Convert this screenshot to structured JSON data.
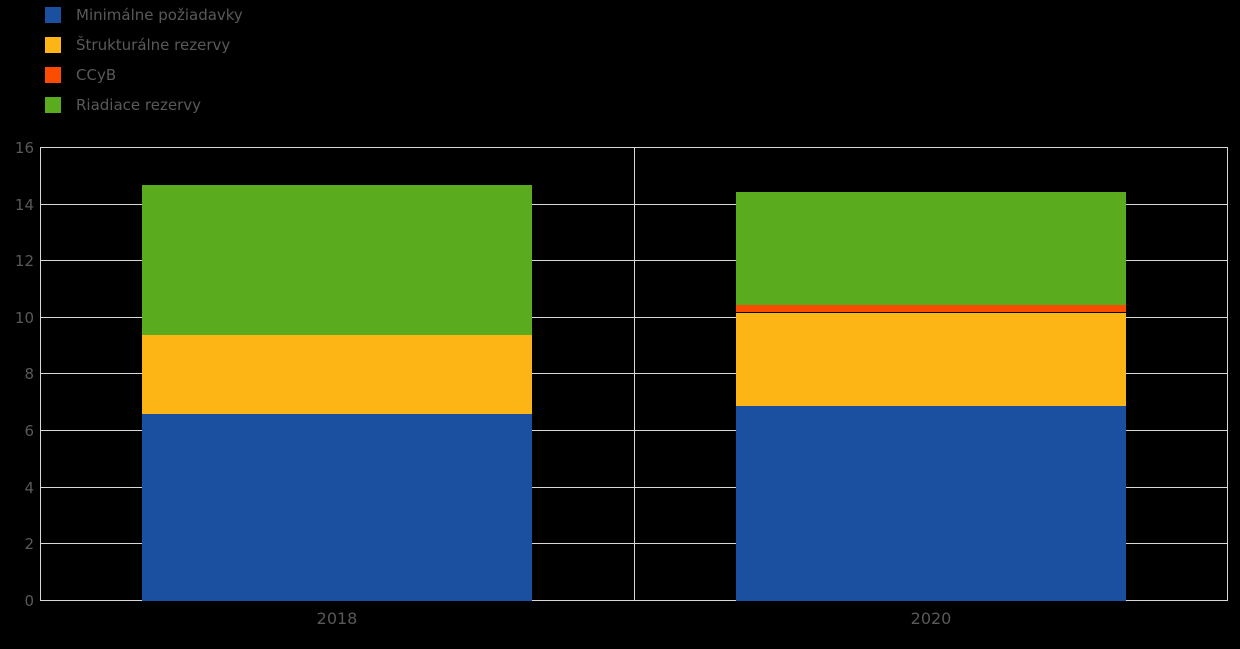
{
  "legend": {
    "items": [
      {
        "label": "Minimálne požiadavky",
        "color": "#1b4fa0"
      },
      {
        "label": "Štrukturálne rezervy",
        "color": "#fdb515"
      },
      {
        "label": "CCyB",
        "color": "#fc4c02"
      },
      {
        "label": "Riadiace rezervy",
        "color": "#5aac1e"
      }
    ]
  },
  "chart_data": {
    "type": "bar",
    "stacked": true,
    "categories": [
      "2018",
      "2020"
    ],
    "series": [
      {
        "name": "Minimálne požiadavky",
        "color": "#1b4fa0",
        "values": [
          6.6,
          6.9
        ]
      },
      {
        "name": "Štrukturálne rezervy",
        "color": "#fdb515",
        "values": [
          2.8,
          3.3
        ]
      },
      {
        "name": "CCyB",
        "color": "#fc4c02",
        "values": [
          0,
          0.25
        ]
      },
      {
        "name": "Riadiace rezervy",
        "color": "#5aac1e",
        "values": [
          5.3,
          4.0
        ]
      }
    ],
    "title": "",
    "xlabel": "",
    "ylabel": "",
    "ylim": [
      0,
      16
    ],
    "yticks": [
      0,
      2,
      4,
      6,
      8,
      10,
      12,
      14,
      16
    ],
    "grid": true,
    "legend_position": "top-left"
  },
  "style": {
    "background": "#000000",
    "grid_color": "#d9d9d9",
    "text_color": "#595959"
  }
}
